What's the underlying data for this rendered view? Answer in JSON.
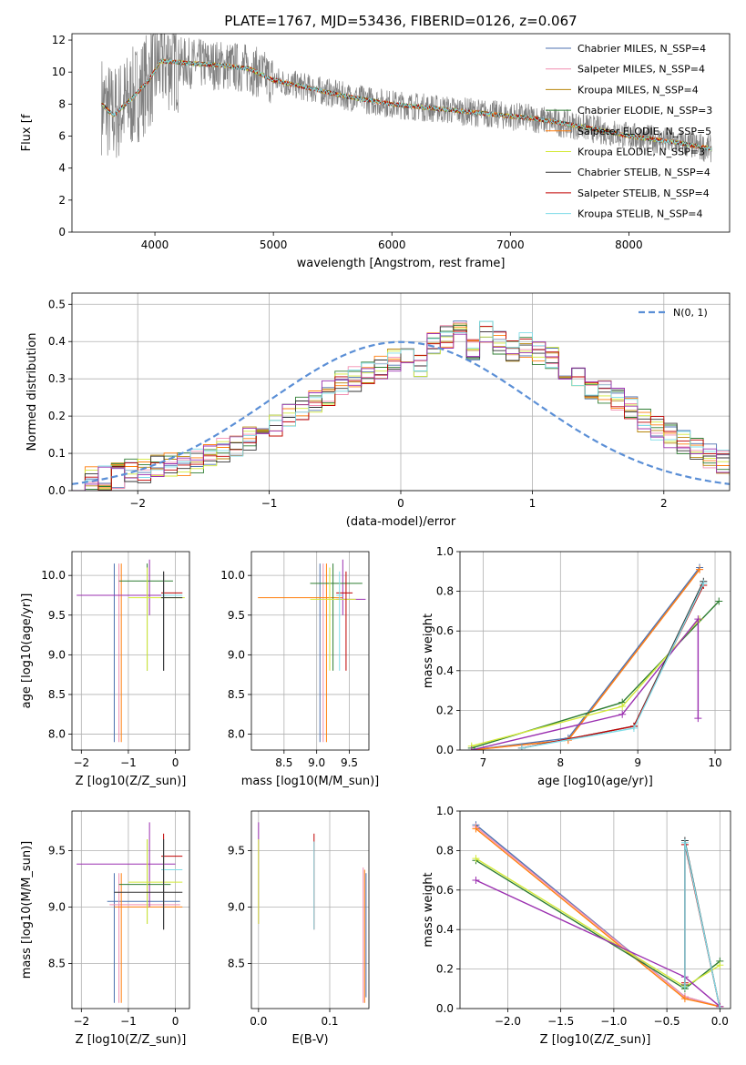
{
  "figure": {
    "title": "PLATE=1767, MJD=53436, FIBERID=0126, z=0.067"
  },
  "chart_data": [
    {
      "id": "spectrum",
      "type": "line",
      "xlabel": "wavelength [Angstrom, rest frame]",
      "ylabel": "Flux [f",
      "xlim": [
        3300,
        8850
      ],
      "ylim": [
        0,
        12.4
      ],
      "xticks": [
        4000,
        5000,
        6000,
        7000,
        8000
      ],
      "yticks": [
        0,
        2,
        4,
        6,
        8,
        10,
        12
      ],
      "grid": false,
      "legend_position": "top-right",
      "legend": [
        {
          "name": "Chabrier MILES, N_SSP=4",
          "color": "#4c72b0"
        },
        {
          "name": "Salpeter MILES, N_SSP=4",
          "color": "#f28eb0"
        },
        {
          "name": "Kroupa MILES, N_SSP=4",
          "color": "#b8860b"
        },
        {
          "name": "Chabrier ELODIE, N_SSP=3",
          "color": "#2e7d32"
        },
        {
          "name": "Salpeter ELODIE, N_SSP=5",
          "color": "#ff7f0e"
        },
        {
          "name": "Kroupa ELODIE, N_SSP=3",
          "color": "#d4ea3a"
        },
        {
          "name": "Chabrier STELIB, N_SSP=4",
          "color": "#333333"
        },
        {
          "name": "Salpeter STELIB, N_SSP=4",
          "color": "#c00000"
        },
        {
          "name": "Kroupa STELIB, N_SSP=4",
          "color": "#7fdce8"
        }
      ],
      "continuum": {
        "x": [
          3550,
          3650,
          3800,
          3950,
          4050,
          4200,
          4400,
          4600,
          4800,
          5000,
          5300,
          5600,
          6000,
          6400,
          6800,
          7200,
          7600,
          8000,
          8400,
          8700
        ],
        "y": [
          8.0,
          7.3,
          8.3,
          9.5,
          10.7,
          10.6,
          10.5,
          10.4,
          10.2,
          9.5,
          9.0,
          8.5,
          8.0,
          7.7,
          7.4,
          7.1,
          6.6,
          6.0,
          5.6,
          5.2
        ]
      }
    },
    {
      "id": "residuals",
      "type": "bar",
      "xlabel": "(data-model)/error",
      "ylabel": "Normed distribution",
      "xlim": [
        -2.5,
        2.5
      ],
      "ylim": [
        0,
        0.53
      ],
      "xticks": [
        -2,
        -1,
        0,
        1,
        2
      ],
      "yticks": [
        0.0,
        0.1,
        0.2,
        0.3,
        0.4,
        0.5
      ],
      "grid": true,
      "legend_position": "top-right",
      "legend_label": "N(0, 1)",
      "bin_width": 0.1,
      "bin_start": -2.5,
      "histogram": [
        0.03,
        0.035,
        0.033,
        0.04,
        0.05,
        0.055,
        0.06,
        0.07,
        0.075,
        0.08,
        0.09,
        0.11,
        0.12,
        0.14,
        0.16,
        0.18,
        0.205,
        0.22,
        0.235,
        0.26,
        0.29,
        0.3,
        0.32,
        0.33,
        0.35,
        0.36,
        0.34,
        0.39,
        0.41,
        0.44,
        0.385,
        0.42,
        0.4,
        0.38,
        0.39,
        0.37,
        0.35,
        0.32,
        0.3,
        0.28,
        0.26,
        0.24,
        0.22,
        0.19,
        0.17,
        0.15,
        0.13,
        0.11,
        0.09,
        0.075,
        0.065
      ]
    },
    {
      "id": "age-vs-Z",
      "type": "scatter",
      "xlabel": "Z [log10(Z/Z_sun)]",
      "ylabel": "age  [log10(age/yr)]",
      "xlim": [
        -2.2,
        0.3
      ],
      "ylim": [
        7.8,
        10.3
      ],
      "xticks": [
        -2,
        -1,
        0
      ],
      "yticks": [
        8.0,
        8.5,
        9.0,
        9.5,
        10.0
      ],
      "grid": true,
      "errorbars": [
        {
          "x": -1.3,
          "y": 9.05,
          "xlo": -1.3,
          "xhi": -1.3,
          "ylo": 7.9,
          "yhi": 10.15,
          "color": "#4c72b0"
        },
        {
          "x": -1.2,
          "y": 9.05,
          "xlo": -1.2,
          "xhi": -1.2,
          "ylo": 7.9,
          "yhi": 10.15,
          "color": "#f28eb0"
        },
        {
          "x": -1.15,
          "y": 9.05,
          "xlo": -1.15,
          "xhi": -1.15,
          "ylo": 7.9,
          "yhi": 10.15,
          "color": "#ff7f0e"
        },
        {
          "x": -0.55,
          "y": 9.75,
          "xlo": -2.1,
          "xhi": 0.1,
          "ylo": 9.5,
          "yhi": 10.2,
          "color": "#9b30b0"
        },
        {
          "x": -0.6,
          "y": 9.93,
          "xlo": -1.2,
          "xhi": -0.05,
          "ylo": 8.8,
          "yhi": 10.15,
          "color": "#2e7d32"
        },
        {
          "x": -0.6,
          "y": 9.72,
          "xlo": -1.0,
          "xhi": 0.2,
          "ylo": 8.8,
          "yhi": 10.1,
          "color": "#d4ea3a"
        },
        {
          "x": -0.25,
          "y": 9.78,
          "xlo": -0.3,
          "xhi": 0.15,
          "ylo": 8.8,
          "yhi": 10.05,
          "color": "#c00000"
        },
        {
          "x": -0.25,
          "y": 9.75,
          "xlo": -0.3,
          "xhi": 0.15,
          "ylo": 8.8,
          "yhi": 10.05,
          "color": "#7fdce8"
        },
        {
          "x": -0.25,
          "y": 9.72,
          "xlo": -0.3,
          "xhi": 0.15,
          "ylo": 8.8,
          "yhi": 10.05,
          "color": "#333333"
        }
      ]
    },
    {
      "id": "age-vs-mass",
      "type": "scatter",
      "xlabel": "mass [log10(M/M_sun)]",
      "ylabel": "",
      "xlim": [
        8.0,
        9.8
      ],
      "ylim": [
        7.8,
        10.3
      ],
      "xticks": [
        8.5,
        9.0,
        9.5
      ],
      "yticks": [
        8.0,
        8.5,
        9.0,
        9.5,
        10.0
      ],
      "grid": true,
      "errorbars": [
        {
          "x": 9.05,
          "y": 9.05,
          "xlo": 9.05,
          "xhi": 9.05,
          "ylo": 7.9,
          "yhi": 10.15,
          "color": "#4c72b0"
        },
        {
          "x": 9.1,
          "y": 9.05,
          "xlo": 9.1,
          "xhi": 9.1,
          "ylo": 7.9,
          "yhi": 10.15,
          "color": "#f28eb0"
        },
        {
          "x": 9.15,
          "y": 9.05,
          "xlo": 9.15,
          "xhi": 9.15,
          "ylo": 7.9,
          "yhi": 10.15,
          "color": "#ff7f0e"
        },
        {
          "x": 9.35,
          "y": 9.72,
          "xlo": 8.1,
          "xhi": 9.4,
          "ylo": 9.72,
          "yhi": 9.72,
          "color": "#ff7f0e"
        },
        {
          "x": 9.4,
          "y": 9.7,
          "xlo": 9.3,
          "xhi": 9.75,
          "ylo": 9.5,
          "yhi": 10.2,
          "color": "#9b30b0"
        },
        {
          "x": 9.25,
          "y": 9.9,
          "xlo": 8.9,
          "xhi": 9.7,
          "ylo": 8.8,
          "yhi": 10.15,
          "color": "#2e7d32"
        },
        {
          "x": 9.2,
          "y": 9.7,
          "xlo": 8.9,
          "xhi": 9.6,
          "ylo": 8.8,
          "yhi": 10.1,
          "color": "#d4ea3a"
        },
        {
          "x": 9.45,
          "y": 9.78,
          "xlo": 9.3,
          "xhi": 9.55,
          "ylo": 8.8,
          "yhi": 10.05,
          "color": "#c00000"
        },
        {
          "x": 9.35,
          "y": 9.75,
          "xlo": 9.3,
          "xhi": 9.4,
          "ylo": 8.8,
          "yhi": 10.05,
          "color": "#7fdce8"
        }
      ]
    },
    {
      "id": "weight-vs-age",
      "type": "line",
      "xlabel": "age  [log10(age/yr)]",
      "ylabel": "mass weight",
      "xlim": [
        6.7,
        10.2
      ],
      "ylim": [
        0,
        1.0
      ],
      "xticks": [
        7,
        8,
        9,
        10
      ],
      "yticks": [
        0.0,
        0.2,
        0.4,
        0.6,
        0.8,
        1.0
      ],
      "grid": true,
      "series": [
        {
          "color": "#4c72b0",
          "x": [
            6.85,
            8.1,
            9.8
          ],
          "y": [
            0.0,
            0.06,
            0.92
          ]
        },
        {
          "color": "#f28eb0",
          "x": [
            6.85,
            8.1,
            9.8
          ],
          "y": [
            0.0,
            0.05,
            0.91
          ]
        },
        {
          "color": "#ff7f0e",
          "x": [
            6.85,
            8.1,
            9.8
          ],
          "y": [
            0.0,
            0.05,
            0.91
          ]
        },
        {
          "color": "#2e7d32",
          "x": [
            6.85,
            8.8,
            10.05
          ],
          "y": [
            0.01,
            0.24,
            0.75
          ]
        },
        {
          "color": "#d4ea3a",
          "x": [
            6.85,
            8.8,
            9.8
          ],
          "y": [
            0.02,
            0.22,
            0.66
          ]
        },
        {
          "color": "#9b30b0",
          "x": [
            6.85,
            8.8,
            9.78,
            9.78
          ],
          "y": [
            0.0,
            0.18,
            0.66,
            0.16
          ]
        },
        {
          "color": "#333333",
          "x": [
            7.5,
            8.95,
            9.85
          ],
          "y": [
            0.01,
            0.12,
            0.85
          ]
        },
        {
          "color": "#c00000",
          "x": [
            7.5,
            8.95,
            9.85
          ],
          "y": [
            0.01,
            0.12,
            0.83
          ]
        },
        {
          "color": "#7fdce8",
          "x": [
            7.5,
            8.95,
            9.85
          ],
          "y": [
            0.01,
            0.11,
            0.84
          ]
        }
      ]
    },
    {
      "id": "mass-vs-Z",
      "type": "scatter",
      "xlabel": "Z [log10(Z/Z_sun)]",
      "ylabel": "mass [log10(M/M_sun)]",
      "xlim": [
        -2.2,
        0.3
      ],
      "ylim": [
        8.1,
        9.85
      ],
      "xticks": [
        -2,
        -1,
        0
      ],
      "yticks": [
        8.5,
        9.0,
        9.5
      ],
      "grid": true,
      "errorbars": [
        {
          "x": -1.3,
          "y": 9.05,
          "xlo": -1.45,
          "xhi": 0.1,
          "ylo": 8.15,
          "yhi": 9.3,
          "color": "#4c72b0"
        },
        {
          "x": -1.2,
          "y": 9.02,
          "xlo": -1.4,
          "xhi": 0.1,
          "ylo": 8.15,
          "yhi": 9.3,
          "color": "#f28eb0"
        },
        {
          "x": -1.15,
          "y": 9.0,
          "xlo": -1.3,
          "xhi": 0.15,
          "ylo": 8.15,
          "yhi": 9.3,
          "color": "#ff7f0e"
        },
        {
          "x": -0.55,
          "y": 9.38,
          "xlo": -2.1,
          "xhi": 0.0,
          "ylo": 9.0,
          "yhi": 9.75,
          "color": "#9b30b0"
        },
        {
          "x": -0.6,
          "y": 9.2,
          "xlo": -1.2,
          "xhi": -0.1,
          "ylo": 8.85,
          "yhi": 9.6,
          "color": "#2e7d32"
        },
        {
          "x": -0.6,
          "y": 9.22,
          "xlo": -1.0,
          "xhi": 0.15,
          "ylo": 8.85,
          "yhi": 9.6,
          "color": "#d4ea3a"
        },
        {
          "x": -0.25,
          "y": 9.45,
          "xlo": -0.3,
          "xhi": 0.15,
          "ylo": 8.8,
          "yhi": 9.65,
          "color": "#c00000"
        },
        {
          "x": -0.25,
          "y": 9.33,
          "xlo": -0.3,
          "xhi": 0.15,
          "ylo": 8.8,
          "yhi": 9.6,
          "color": "#7fdce8"
        },
        {
          "x": -0.25,
          "y": 9.13,
          "xlo": -1.3,
          "xhi": 0.15,
          "ylo": 8.8,
          "yhi": 9.6,
          "color": "#333333"
        }
      ]
    },
    {
      "id": "mass-vs-ebv",
      "type": "scatter",
      "xlabel": "E(B-V)",
      "ylabel": "",
      "xlim": [
        -0.01,
        0.155
      ],
      "ylim": [
        8.1,
        9.85
      ],
      "xticks": [
        0.0,
        0.1
      ],
      "yticks": [
        8.5,
        9.0,
        9.5
      ],
      "grid": true,
      "errorbars": [
        {
          "x": 0.0,
          "y": 9.3,
          "xlo": 0.0,
          "xhi": 0.0,
          "ylo": 8.85,
          "yhi": 9.75,
          "color": "#9b30b0"
        },
        {
          "x": 0.0,
          "y": 9.22,
          "xlo": 0.0,
          "xhi": 0.0,
          "ylo": 8.85,
          "yhi": 9.6,
          "color": "#d4ea3a"
        },
        {
          "x": 0.078,
          "y": 9.4,
          "xlo": 0.078,
          "xhi": 0.078,
          "ylo": 8.8,
          "yhi": 9.65,
          "color": "#c00000"
        },
        {
          "x": 0.078,
          "y": 9.3,
          "xlo": 0.078,
          "xhi": 0.078,
          "ylo": 8.8,
          "yhi": 9.58,
          "color": "#7fdce8"
        },
        {
          "x": 0.147,
          "y": 8.8,
          "xlo": 0.147,
          "xhi": 0.147,
          "ylo": 8.15,
          "yhi": 9.35,
          "color": "#f28eb0"
        },
        {
          "x": 0.149,
          "y": 8.8,
          "xlo": 0.149,
          "xhi": 0.149,
          "ylo": 8.15,
          "yhi": 9.33,
          "color": "#ff7f0e"
        },
        {
          "x": 0.151,
          "y": 8.8,
          "xlo": 0.151,
          "xhi": 0.151,
          "ylo": 8.2,
          "yhi": 9.3,
          "color": "#4c72b0"
        }
      ]
    },
    {
      "id": "weight-vs-Z",
      "type": "line",
      "xlabel": "Z [log10(Z/Z_sun)]",
      "ylabel": "mass weight",
      "xlim": [
        -2.45,
        0.1
      ],
      "ylim": [
        0,
        1.0
      ],
      "xticks": [
        -2.0,
        -1.5,
        -1.0,
        -0.5,
        0.0
      ],
      "yticks": [
        0.0,
        0.2,
        0.4,
        0.6,
        0.8,
        1.0
      ],
      "grid": true,
      "series": [
        {
          "color": "#4c72b0",
          "x": [
            -2.3,
            -0.33,
            0.0
          ],
          "y": [
            0.93,
            0.06,
            0.01
          ]
        },
        {
          "color": "#f28eb0",
          "x": [
            -2.3,
            -0.33,
            0.0
          ],
          "y": [
            0.92,
            0.06,
            0.01
          ]
        },
        {
          "color": "#ff7f0e",
          "x": [
            -2.3,
            -0.33,
            0.0
          ],
          "y": [
            0.91,
            0.05,
            0.01
          ]
        },
        {
          "color": "#2e7d32",
          "x": [
            -2.3,
            -0.33,
            0.0
          ],
          "y": [
            0.75,
            0.1,
            0.24
          ]
        },
        {
          "color": "#d4ea3a",
          "x": [
            -2.3,
            -0.33,
            0.0
          ],
          "y": [
            0.76,
            0.11,
            0.22
          ]
        },
        {
          "color": "#9b30b0",
          "x": [
            -2.3,
            -0.33,
            0.0
          ],
          "y": [
            0.65,
            0.16,
            0.01
          ]
        },
        {
          "color": "#333333",
          "x": [
            -0.33,
            -0.33,
            0.0
          ],
          "y": [
            0.12,
            0.85,
            0.0
          ]
        },
        {
          "color": "#c00000",
          "x": [
            -0.33,
            -0.33,
            0.0
          ],
          "y": [
            0.13,
            0.83,
            0.0
          ]
        },
        {
          "color": "#7fdce8",
          "x": [
            -0.33,
            -0.33,
            0.0
          ],
          "y": [
            0.11,
            0.84,
            0.0
          ]
        }
      ]
    }
  ]
}
